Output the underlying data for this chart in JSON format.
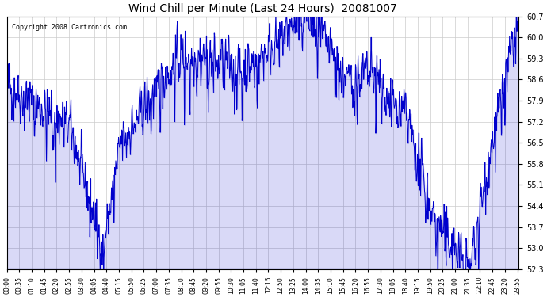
{
  "title": "Wind Chill per Minute (Last 24 Hours)  20081007",
  "copyright": "Copyright 2008 Cartronics.com",
  "line_color": "#0000cc",
  "bg_color": "#ffffff",
  "grid_color": "#cccccc",
  "ylim": [
    52.3,
    60.7
  ],
  "yticks": [
    52.3,
    53.0,
    53.7,
    54.4,
    55.1,
    55.8,
    56.5,
    57.2,
    57.9,
    58.6,
    59.3,
    60.0,
    60.7
  ],
  "xtick_labels": [
    "00:00",
    "00:35",
    "01:10",
    "01:45",
    "02:20",
    "02:55",
    "03:30",
    "04:05",
    "04:40",
    "05:15",
    "05:50",
    "06:25",
    "07:00",
    "07:35",
    "08:10",
    "08:45",
    "09:20",
    "09:55",
    "10:30",
    "11:05",
    "11:40",
    "12:15",
    "12:50",
    "13:25",
    "14:00",
    "14:35",
    "15:10",
    "15:45",
    "16:20",
    "16:55",
    "17:30",
    "18:05",
    "18:40",
    "19:15",
    "19:50",
    "20:25",
    "21:00",
    "21:35",
    "22:10",
    "22:45",
    "23:20",
    "23:55"
  ],
  "xtick_positions": [
    0,
    35,
    70,
    105,
    140,
    175,
    210,
    245,
    280,
    315,
    350,
    385,
    420,
    455,
    490,
    525,
    560,
    595,
    630,
    665,
    700,
    735,
    770,
    805,
    840,
    875,
    910,
    945,
    980,
    1015,
    1050,
    1085,
    1120,
    1155,
    1190,
    1225,
    1260,
    1295,
    1330,
    1365,
    1400,
    1435
  ],
  "seed": 42
}
